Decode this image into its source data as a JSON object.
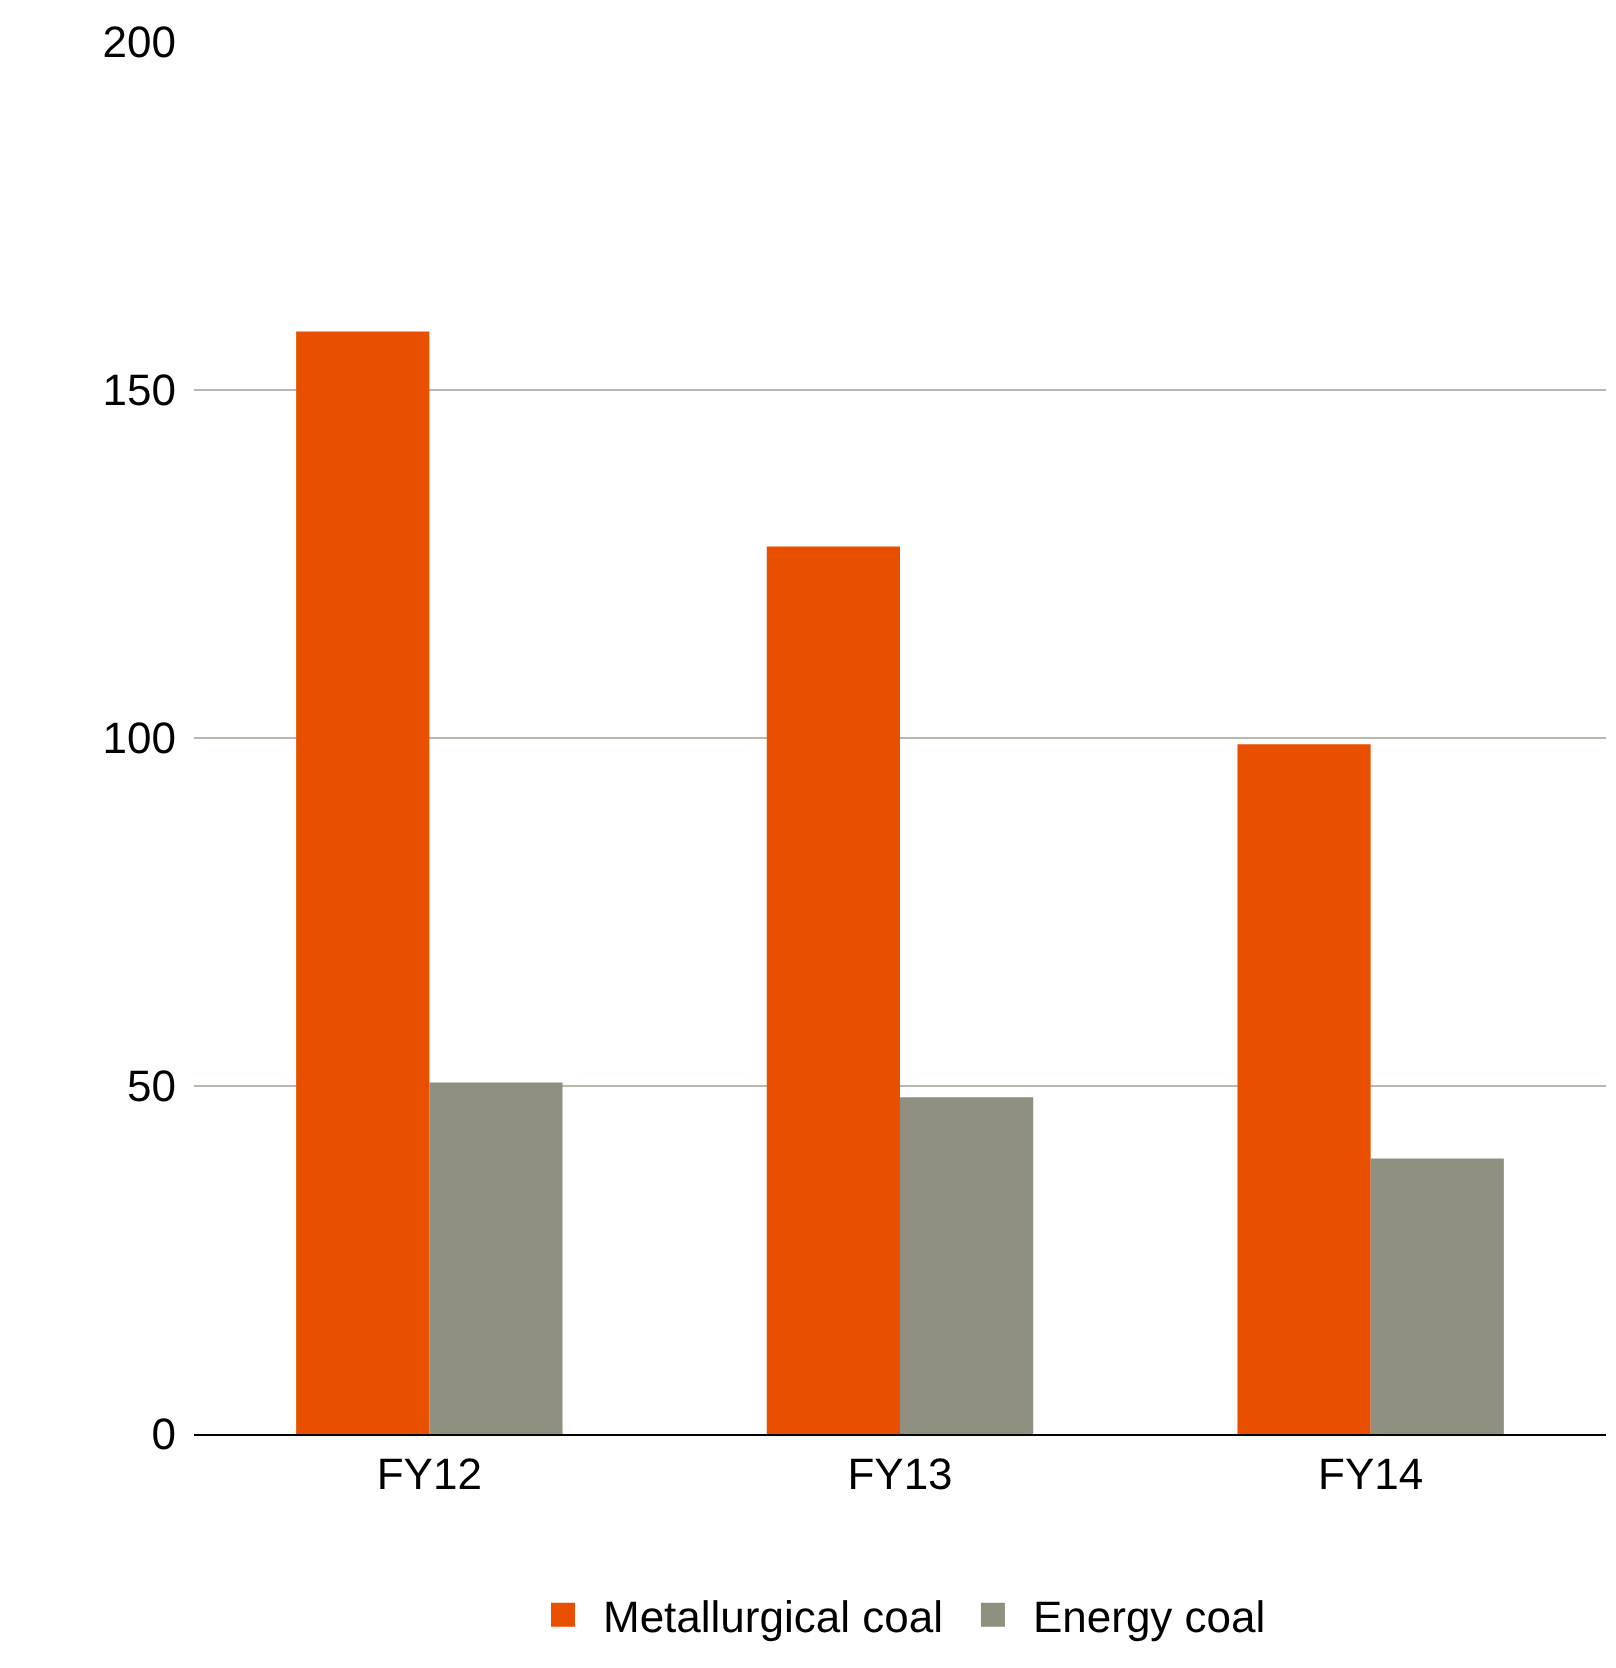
{
  "chart_data": {
    "type": "bar",
    "categories": [
      "FY12",
      "FY13",
      "FY14"
    ],
    "series": [
      {
        "name": "Metallurgical coal",
        "color": "#e85000",
        "values": [
          158.4,
          127.5,
          99.1
        ]
      },
      {
        "name": "Energy coal",
        "color": "#909080",
        "values": [
          50.5,
          48.4,
          39.6
        ]
      }
    ],
    "ylim": [
      0,
      200
    ],
    "yticks": [
      0,
      50,
      100,
      150,
      200
    ],
    "grid": "y",
    "legend": "bottom"
  }
}
